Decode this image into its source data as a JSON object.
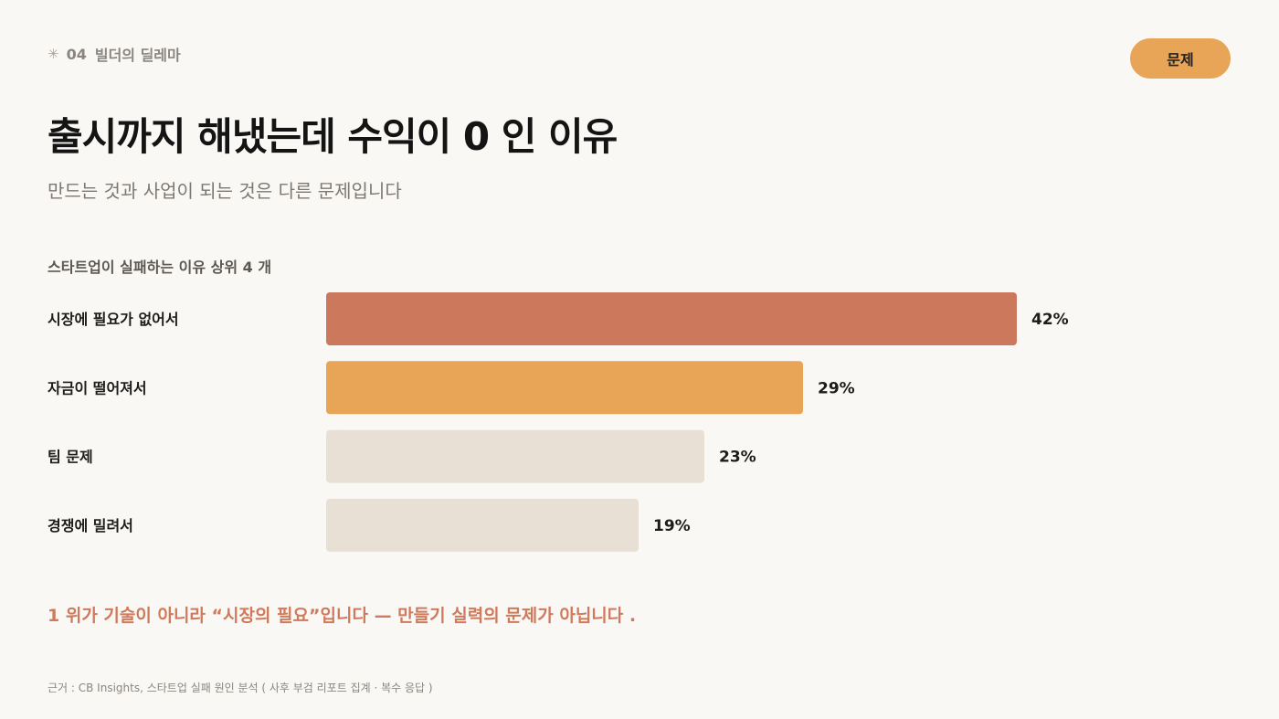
{
  "header": {
    "section_star": "✳",
    "section_number": "04",
    "section_title": "빌더의 딜레마",
    "tag_label": "문제"
  },
  "title": "출시까지 해냈는데 수익이  0 인 이유",
  "subtitle": "만드는 것과 사업이 되는 것은 다른 문제입니다",
  "chart_data": {
    "type": "bar",
    "orientation": "horizontal",
    "title": "스타트업이 실패하는 이유 상위  4 개",
    "categories": [
      "시장에 필요가 없어서",
      "자금이 떨어져서",
      "팀 문제",
      "경쟁에 밀려서"
    ],
    "values": [
      42,
      29,
      23,
      19
    ],
    "value_labels": [
      "42%",
      "29%",
      "23%",
      "19%"
    ],
    "unit": "%",
    "colors": [
      "#cc785c",
      "#e8a457",
      "#e8e0d4",
      "#e8e0d4"
    ],
    "grid": false
  },
  "insight": "1 위가 기술이 아니라 “시장의 필요”입니다 — 만들기 실력의 문제가 아닙니다 .",
  "source": "근거 : CB Insights,  스타트업 실패 원인 분석  ( 사후 부검 리포트 집계  ·  복수 응답 )"
}
